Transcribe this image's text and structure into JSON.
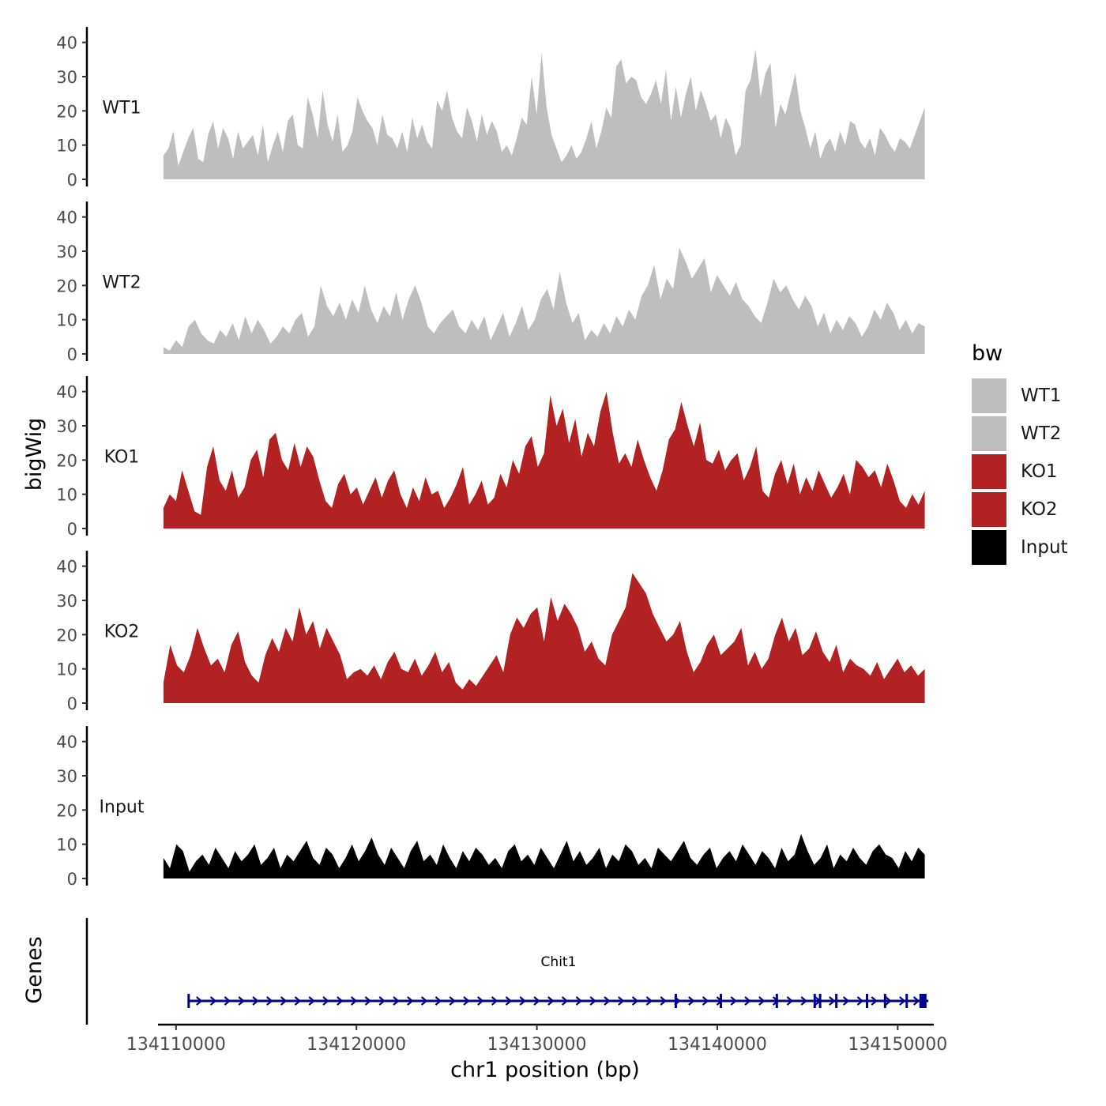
{
  "chart_data": {
    "type": "area",
    "ylabel": "bigWig",
    "xlabel": "chr1 position (bp)",
    "xlim": [
      134109000,
      134152000
    ],
    "data_x_range": [
      134109300,
      134151500
    ],
    "ylim": [
      0,
      45
    ],
    "yticks": [
      "0",
      "10",
      "20",
      "30",
      "40"
    ],
    "xticks": [
      "134110000",
      "134120000",
      "134130000",
      "134140000",
      "134150000"
    ],
    "tracks": [
      {
        "name": "WT1",
        "color": "#bebebe",
        "values": [
          7,
          9,
          14,
          4,
          8,
          12,
          15,
          6,
          5,
          13,
          17,
          9,
          15,
          12,
          6,
          14,
          9,
          11,
          13,
          7,
          16,
          5,
          10,
          14,
          8,
          17,
          19,
          10,
          9,
          24,
          19,
          12,
          26,
          16,
          11,
          19,
          8,
          10,
          14,
          24,
          20,
          17,
          15,
          10,
          19,
          13,
          12,
          9,
          14,
          8,
          18,
          12,
          16,
          11,
          9,
          23,
          20,
          26,
          18,
          14,
          12,
          21,
          17,
          11,
          19,
          13,
          17,
          14,
          8,
          10,
          7,
          12,
          18,
          16,
          30,
          19,
          37,
          21,
          13,
          9,
          5,
          7,
          10,
          6,
          8,
          12,
          17,
          9,
          14,
          21,
          18,
          33,
          35,
          28,
          30,
          29,
          24,
          22,
          25,
          29,
          22,
          32,
          17,
          27,
          18,
          25,
          30,
          20,
          26,
          22,
          17,
          19,
          12,
          18,
          15,
          7,
          10,
          26,
          29,
          38,
          24,
          31,
          34,
          15,
          22,
          19,
          25,
          31,
          20,
          15,
          9,
          14,
          6,
          10,
          12,
          8,
          14,
          10,
          17,
          16,
          11,
          9,
          12,
          7,
          15,
          13,
          10,
          8,
          12,
          11,
          9,
          13,
          17,
          21
        ],
        "labels": [
          "WT1"
        ]
      },
      {
        "name": "WT2",
        "color": "#bebebe",
        "values": [
          2,
          1,
          4,
          2,
          8,
          10,
          6,
          4,
          3,
          7,
          5,
          9,
          4,
          11,
          6,
          10,
          7,
          3,
          5,
          8,
          6,
          10,
          12,
          5,
          8,
          20,
          14,
          11,
          15,
          10,
          16,
          12,
          20,
          13,
          9,
          14,
          11,
          18,
          10,
          16,
          20,
          15,
          8,
          6,
          9,
          11,
          13,
          8,
          6,
          10,
          7,
          11,
          4,
          8,
          12,
          5,
          9,
          14,
          7,
          10,
          16,
          19,
          13,
          24,
          15,
          9,
          12,
          4,
          7,
          5,
          9,
          6,
          11,
          8,
          13,
          10,
          17,
          20,
          26,
          16,
          22,
          19,
          31,
          27,
          22,
          25,
          28,
          18,
          23,
          20,
          17,
          21,
          16,
          14,
          11,
          9,
          15,
          22,
          18,
          20,
          16,
          13,
          17,
          14,
          8,
          12,
          6,
          10,
          7,
          11,
          9,
          5,
          8,
          13,
          10,
          15,
          12,
          7,
          10,
          6,
          9,
          8
        ],
        "labels": [
          "WT2"
        ]
      },
      {
        "name": "KO1",
        "color": "#b22222",
        "values": [
          6,
          10,
          8,
          17,
          11,
          5,
          4,
          18,
          24,
          14,
          11,
          17,
          9,
          12,
          20,
          23,
          15,
          26,
          28,
          20,
          17,
          25,
          18,
          24,
          21,
          14,
          8,
          6,
          13,
          16,
          10,
          12,
          7,
          11,
          15,
          9,
          14,
          17,
          10,
          6,
          12,
          8,
          15,
          10,
          11,
          6,
          9,
          13,
          18,
          7,
          10,
          14,
          7,
          9,
          16,
          12,
          20,
          16,
          24,
          27,
          18,
          22,
          39,
          30,
          35,
          25,
          32,
          21,
          28,
          24,
          34,
          40,
          28,
          19,
          22,
          18,
          26,
          20,
          15,
          11,
          17,
          26,
          29,
          37,
          30,
          24,
          31,
          20,
          19,
          23,
          17,
          20,
          22,
          14,
          18,
          24,
          11,
          9,
          16,
          20,
          13,
          19,
          10,
          15,
          11,
          17,
          13,
          9,
          12,
          16,
          10,
          20,
          18,
          15,
          17,
          12,
          19,
          14,
          8,
          6,
          10,
          7,
          11
        ],
        "labels": [
          "KO1"
        ]
      },
      {
        "name": "KO2",
        "color": "#b22222",
        "values": [
          6,
          17,
          11,
          9,
          14,
          22,
          16,
          11,
          13,
          9,
          17,
          21,
          12,
          8,
          6,
          14,
          19,
          15,
          22,
          18,
          28,
          20,
          24,
          16,
          22,
          18,
          14,
          7,
          9,
          10,
          8,
          11,
          7,
          12,
          15,
          10,
          9,
          13,
          8,
          11,
          15,
          9,
          12,
          6,
          4,
          7,
          5,
          8,
          11,
          14,
          9,
          20,
          25,
          22,
          26,
          28,
          18,
          31,
          24,
          29,
          26,
          22,
          15,
          18,
          13,
          11,
          20,
          24,
          28,
          38,
          35,
          32,
          26,
          22,
          18,
          20,
          24,
          15,
          9,
          12,
          17,
          20,
          14,
          16,
          18,
          22,
          11,
          15,
          10,
          13,
          20,
          25,
          18,
          22,
          14,
          16,
          21,
          15,
          12,
          17,
          9,
          13,
          11,
          10,
          8,
          12,
          7,
          10,
          13,
          9,
          11,
          8,
          10
        ],
        "labels": [
          "KO2"
        ]
      },
      {
        "name": "Input",
        "color": "#000000",
        "values": [
          6,
          3,
          10,
          8,
          2,
          5,
          7,
          4,
          9,
          6,
          3,
          8,
          5,
          7,
          10,
          4,
          6,
          9,
          3,
          7,
          5,
          8,
          11,
          6,
          4,
          9,
          7,
          3,
          6,
          10,
          5,
          8,
          12,
          7,
          4,
          9,
          6,
          3,
          8,
          11,
          5,
          7,
          4,
          10,
          6,
          3,
          8,
          5,
          9,
          7,
          4,
          6,
          3,
          8,
          10,
          5,
          7,
          4,
          9,
          6,
          3,
          7,
          11,
          5,
          8,
          4,
          6,
          9,
          3,
          7,
          5,
          10,
          8,
          4,
          6,
          3,
          9,
          7,
          5,
          8,
          11,
          6,
          4,
          7,
          9,
          3,
          6,
          8,
          5,
          10,
          7,
          4,
          8,
          6,
          3,
          9,
          5,
          7,
          13,
          8,
          4,
          6,
          10,
          3,
          7,
          5,
          9,
          6,
          4,
          8,
          10,
          7,
          6,
          3,
          8,
          5,
          9,
          7
        ],
        "labels": [
          "Input"
        ]
      }
    ],
    "legend": {
      "title": "bw",
      "position": "right",
      "entries": [
        {
          "label": "WT1",
          "color": "#bebebe"
        },
        {
          "label": "WT2",
          "color": "#bebebe"
        },
        {
          "label": "KO1",
          "color": "#b22222"
        },
        {
          "label": "KO2",
          "color": "#b22222"
        },
        {
          "label": "Input",
          "color": "#000000"
        }
      ]
    },
    "genes": {
      "panel_label": "Genes",
      "gene_name": "Chit1",
      "start": 134110700,
      "end": 134151700,
      "strand": "+",
      "color": "#00008b",
      "exons": [
        134110700,
        134137700,
        134140200,
        134143300,
        134145400,
        134145700,
        134146600,
        134148300,
        134149300,
        134150500,
        134151400
      ]
    }
  }
}
